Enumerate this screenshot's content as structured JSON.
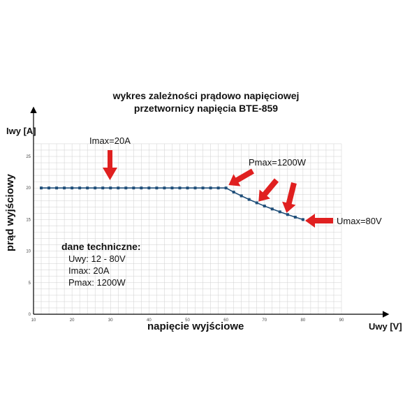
{
  "title": {
    "line1": "wykres zależności prądowo napięciowej",
    "line2": "przetwornicy napięcia BTE-859"
  },
  "labels": {
    "y_unit": "Iwy [A]",
    "x_unit": "Uwy [V]",
    "y_axis": "prąd wyjściowy",
    "x_axis": "napięcie wyjściowe"
  },
  "annotations": {
    "imax": "Imax=20A",
    "pmax": "Pmax=1200W",
    "umax": "Umax=80V"
  },
  "tech": {
    "heading": "dane techniczne:",
    "lines": [
      "Uwy: 12 - 80V",
      "Imax: 20A",
      "Pmax: 1200W"
    ]
  },
  "colors": {
    "line": "#1f4e79",
    "arrow": "#e02020",
    "grid": "#cfcfcf",
    "axis": "#000000"
  },
  "chart_data": {
    "type": "line",
    "title": "wykres zależności prądowo napięciowej przetwornicy napięcia BTE-859",
    "xlabel": "napięcie wyjściowe",
    "ylabel": "prąd wyjściowy",
    "xlim": [
      10,
      95
    ],
    "ylim": [
      0,
      28
    ],
    "x_ticks": [
      10,
      20,
      30,
      40,
      50,
      60,
      70,
      80,
      90
    ],
    "y_ticks": [
      0,
      5,
      10,
      15,
      20,
      25
    ],
    "grid": true,
    "series": [
      {
        "x": [
          12,
          14,
          16,
          18,
          20,
          22,
          24,
          26,
          28,
          30,
          32,
          34,
          36,
          38,
          40,
          42,
          44,
          46,
          48,
          50,
          52,
          54,
          56,
          58,
          60,
          62,
          64,
          66,
          68,
          70,
          72,
          74,
          76,
          78,
          80
        ],
        "values": [
          20,
          20,
          20,
          20,
          20,
          20,
          20,
          20,
          20,
          20,
          20,
          20,
          20,
          20,
          20,
          20,
          20,
          20,
          20,
          20,
          20,
          20,
          20,
          20,
          20,
          19.35,
          18.75,
          18.18,
          17.65,
          17.14,
          16.67,
          16.22,
          15.79,
          15.38,
          15
        ]
      }
    ]
  }
}
